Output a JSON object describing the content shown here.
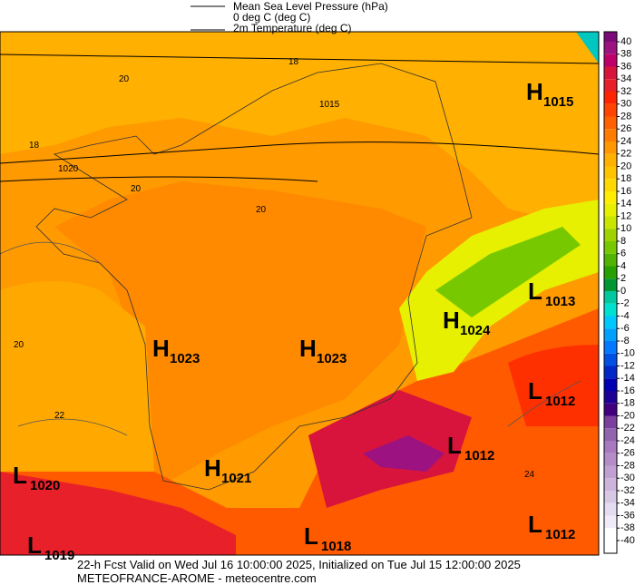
{
  "legend": [
    "Mean Sea Level Pressure (hPa)",
    "0 deg C (deg C)",
    "2m Temperature (deg C)"
  ],
  "colorbar": {
    "ticks": [
      40,
      38,
      36,
      34,
      32,
      30,
      28,
      26,
      24,
      22,
      20,
      18,
      16,
      14,
      12,
      10,
      8,
      6,
      4,
      2,
      0,
      -2,
      -4,
      -6,
      -8,
      -10,
      -12,
      -14,
      -16,
      -18,
      -20,
      -22,
      -24,
      -26,
      -28,
      -30,
      -32,
      -34,
      -36,
      -38,
      -40
    ],
    "colors": [
      "#7a0a78",
      "#9c1280",
      "#c0006a",
      "#d8143c",
      "#e8202a",
      "#ff2400",
      "#ff4400",
      "#ff6000",
      "#ff7c00",
      "#ff9800",
      "#ffb000",
      "#ffc400",
      "#ffd800",
      "#ffec00",
      "#e6f000",
      "#c8e600",
      "#a0d200",
      "#78c800",
      "#50b400",
      "#28a000",
      "#009632",
      "#00c8a0",
      "#00e0d0",
      "#00c8ff",
      "#00a0ff",
      "#0078ff",
      "#0050e6",
      "#0028c8",
      "#0000b4",
      "#1e0096",
      "#400080",
      "#7b3f9e",
      "#9264b0",
      "#a878c0",
      "#b48cc8",
      "#c0a0d2",
      "#ccb4dc",
      "#d8c8e6",
      "#e4dcf0",
      "#f0ebf8",
      "#ffffff",
      "#ffffff"
    ]
  },
  "pressure_centers": [
    {
      "type": "H",
      "value": 1015
    },
    {
      "type": "L",
      "value": 1013
    },
    {
      "type": "H",
      "value": 1024
    },
    {
      "type": "H",
      "value": 1023
    },
    {
      "type": "H",
      "value": 1023
    },
    {
      "type": "L",
      "value": 1012
    },
    {
      "type": "L",
      "value": 1012
    },
    {
      "type": "L",
      "value": 1020
    },
    {
      "type": "H",
      "value": 1021
    },
    {
      "type": "L",
      "value": 1019
    },
    {
      "type": "L",
      "value": 1018
    },
    {
      "type": "L",
      "value": 1012
    }
  ],
  "contour_labels": [
    20,
    18,
    1015,
    18,
    1020,
    20,
    20,
    20,
    22,
    24
  ],
  "footer": [
    "22-h Fcst Valid on Wed Jul 16 10:00:00 2025, Initialized on Tue Jul 15 12:00:00 2025",
    "METEOFRANCE-AROME  - meteocentre.com"
  ]
}
